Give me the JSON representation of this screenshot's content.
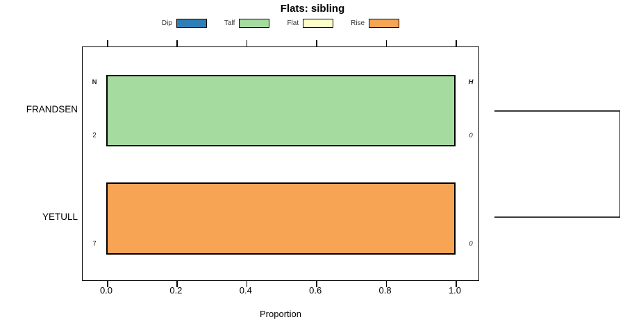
{
  "title": "Flats: sibling",
  "legend": {
    "position": "top",
    "items": [
      {
        "label": "Dip",
        "color": "#2E7EB8"
      },
      {
        "label": "Talf",
        "color": "#A6DBA0"
      },
      {
        "label": "Flat",
        "color": "#FDFDC8"
      },
      {
        "label": "Rise",
        "color": "#F8A455"
      }
    ]
  },
  "chart_data": {
    "type": "bar",
    "orientation": "horizontal",
    "title": "Flats: sibling",
    "xlabel": "Proportion",
    "ylabel": "",
    "xlim": [
      0,
      1.07
    ],
    "xticks": [
      0.0,
      0.2,
      0.4,
      0.6,
      0.8,
      1.0
    ],
    "xtick_labels": [
      "0.0",
      "0.2",
      "0.4",
      "0.6",
      "0.8",
      "1.0"
    ],
    "grid": false,
    "legend_position": "top",
    "legend_entries": [
      "Dip",
      "Talf",
      "Flat",
      "Rise"
    ],
    "categories": [
      "FRANDSEN",
      "YETULL"
    ],
    "series": [
      {
        "name": "Dip",
        "values": [
          0,
          0
        ]
      },
      {
        "name": "Talf",
        "values": [
          1.0,
          0
        ]
      },
      {
        "name": "Flat",
        "values": [
          0,
          0
        ]
      },
      {
        "name": "Rise",
        "values": [
          0,
          1.0
        ]
      }
    ],
    "rows": [
      {
        "category": "FRANDSEN",
        "segment": "Talf",
        "proportion": 1.0,
        "color": "#A6DBA0",
        "n": "2",
        "h": "0"
      },
      {
        "category": "YETULL",
        "segment": "Rise",
        "proportion": 1.0,
        "color": "#F8A455",
        "n": "7",
        "h": "0"
      }
    ],
    "row_annotations": {
      "left_header": "N",
      "right_header": "H",
      "left_values": [
        "2",
        "7"
      ],
      "right_values": [
        "0",
        "0"
      ]
    },
    "right_dendrogram": {
      "joins": [
        {
          "members": [
            "FRANDSEN",
            "YETULL"
          ]
        }
      ]
    }
  }
}
